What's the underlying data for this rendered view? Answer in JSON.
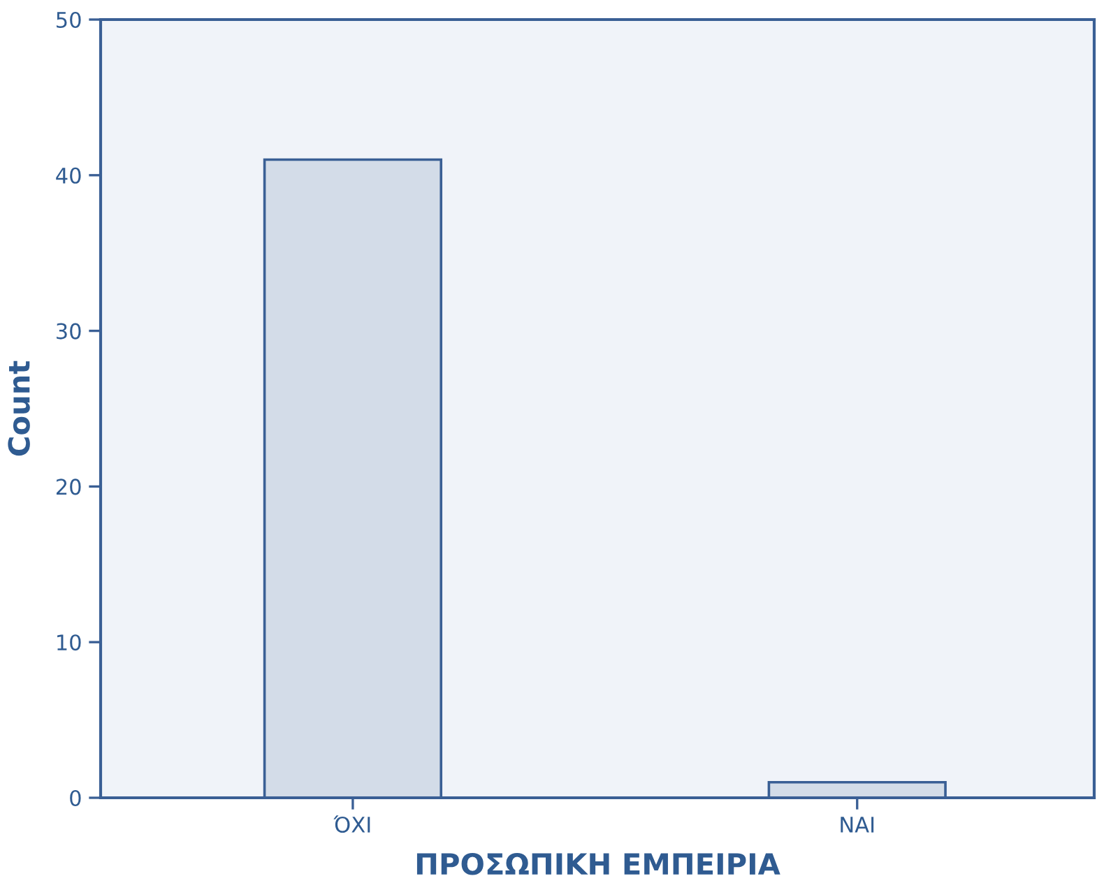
{
  "chart_data": {
    "type": "bar",
    "xlabel": "ΠΡΟΣΩΠΙΚΗ ΕΜΠΕΙΡΙΑ",
    "ylabel": "Count",
    "categories": [
      "ΌΧΙ",
      "ΝΑΙ"
    ],
    "values": [
      41,
      1
    ],
    "color": "#d3dce8",
    "ylim": [
      0,
      50
    ],
    "yticks": [
      0,
      10,
      20,
      30,
      40,
      50
    ],
    "grid": false
  }
}
